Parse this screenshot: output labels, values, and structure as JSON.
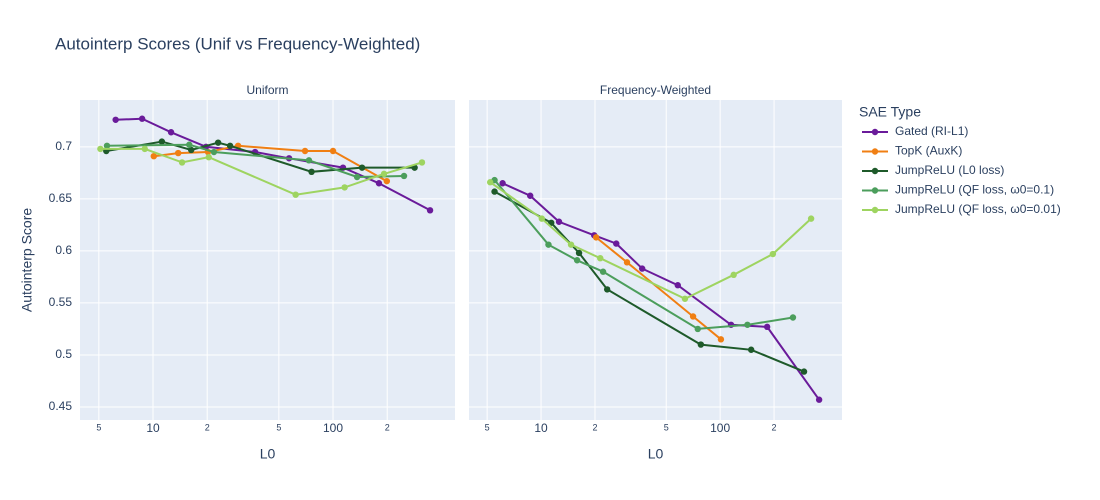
{
  "title": "Autointerp Scores (Unif vs Frequency-Weighted)",
  "legend_title": "SAE Type",
  "chart_data": [
    {
      "type": "line",
      "subtitle": "Uniform",
      "x_label": "L0",
      "y_label": "Autointerp Score",
      "log_x": true,
      "grid": true,
      "show_ytick_labels": true,
      "xlim": [
        3.93,
        476
      ],
      "xticks": [
        5,
        10,
        {
          "value": 20,
          "label": "2"
        },
        {
          "value": 50,
          "label": "5"
        },
        100,
        {
          "value": 200,
          "label": "2"
        }
      ],
      "ylim": [
        0.4375,
        0.745
      ],
      "yticks": [
        0.45,
        0.5,
        0.55,
        0.6,
        0.65,
        0.7
      ],
      "series": [
        {
          "name": "Gated (RI-L1)",
          "color": "#6a1b9a",
          "x": [
            6.2,
            8.7,
            12.6,
            19.7,
            36.9,
            57,
            113.6,
            180,
            346
          ],
          "values": [
            0.726,
            0.727,
            0.714,
            0.7,
            0.695,
            0.689,
            0.68,
            0.665,
            0.639
          ]
        },
        {
          "name": "TopK (AuxK)",
          "color": "#f07f13",
          "x": [
            10.1,
            13.8,
            20.2,
            29.7,
            69.9,
            100,
            199
          ],
          "values": [
            0.691,
            0.694,
            0.695,
            0.701,
            0.696,
            0.696,
            0.667
          ]
        },
        {
          "name": "JumpReLU (L0 loss)",
          "color": "#1e5a2a",
          "x": [
            5.5,
            11.2,
            16.3,
            23,
            26.8,
            76,
            145,
            284
          ],
          "values": [
            0.696,
            0.705,
            0.697,
            0.704,
            0.701,
            0.676,
            0.68,
            0.68
          ]
        },
        {
          "name": "JumpReLU (QF loss, ω0=0.1)",
          "color": "#4c9e5c",
          "x": [
            5.55,
            15.9,
            21.8,
            73.5,
            136,
            248
          ],
          "values": [
            0.701,
            0.702,
            0.695,
            0.687,
            0.671,
            0.672
          ]
        },
        {
          "name": "JumpReLU (QF loss, ω0=0.01)",
          "color": "#9ed460",
          "x": [
            5.1,
            9.0,
            14.5,
            20.4,
            62,
            116,
            192,
            312
          ],
          "values": [
            0.698,
            0.698,
            0.685,
            0.69,
            0.654,
            0.661,
            0.674,
            0.685
          ]
        }
      ]
    },
    {
      "type": "line",
      "subtitle": "Frequency-Weighted",
      "x_label": "L0",
      "log_x": true,
      "grid": true,
      "show_ytick_labels": false,
      "xlim": [
        3.96,
        479
      ],
      "xticks": [
        5,
        10,
        {
          "value": 20,
          "label": "2"
        },
        {
          "value": 50,
          "label": "5"
        },
        100,
        {
          "value": 200,
          "label": "2"
        }
      ],
      "ylim": [
        0.4375,
        0.745
      ],
      "yticks": [
        0.45,
        0.5,
        0.55,
        0.6,
        0.65,
        0.7
      ],
      "series": [
        {
          "color": "#6a1b9a",
          "x": [
            6.1,
            8.7,
            12.6,
            19.8,
            26.3,
            36.7,
            58,
            115,
            183,
            357
          ],
          "values": [
            0.665,
            0.653,
            0.628,
            0.615,
            0.607,
            0.583,
            0.567,
            0.529,
            0.527,
            0.457
          ]
        },
        {
          "color": "#f07f13",
          "x": [
            20.3,
            30.2,
            70.6,
            101
          ],
          "values": [
            0.613,
            0.589,
            0.537,
            0.515
          ]
        },
        {
          "color": "#1e5a2a",
          "x": [
            5.5,
            11.4,
            16.3,
            23.4,
            78,
            149,
            294
          ],
          "values": [
            0.657,
            0.627,
            0.598,
            0.563,
            0.51,
            0.505,
            0.484
          ]
        },
        {
          "color": "#4c9e5c",
          "x": [
            5.5,
            11,
            15.9,
            22.2,
            75,
            142,
            255
          ],
          "values": [
            0.668,
            0.606,
            0.591,
            0.58,
            0.525,
            0.529,
            0.536
          ]
        },
        {
          "color": "#9ed460",
          "x": [
            5.2,
            10.1,
            14.7,
            21.4,
            63.6,
            119,
            197,
            322
          ],
          "values": [
            0.666,
            0.631,
            0.606,
            0.593,
            0.554,
            0.577,
            0.597,
            0.631
          ]
        }
      ]
    }
  ]
}
